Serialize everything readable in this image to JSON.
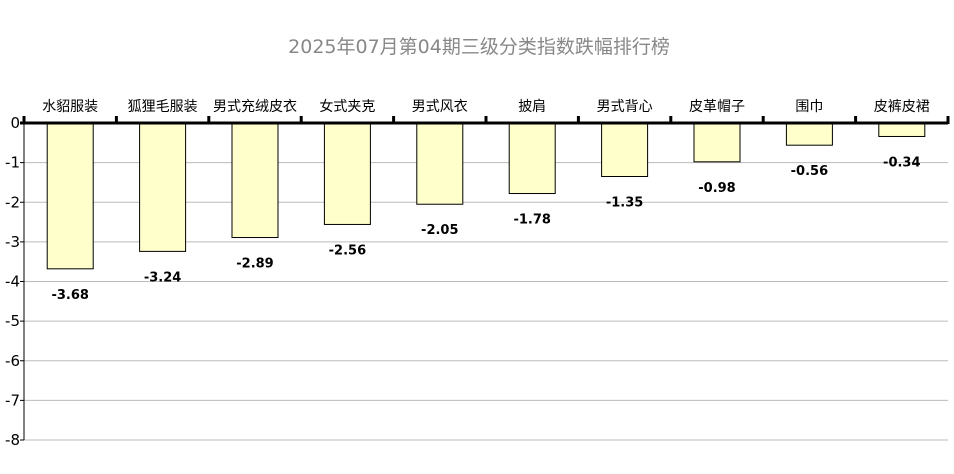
{
  "chart_data": {
    "type": "bar",
    "title": "2025年07月第04期三级分类指数跌幅排行榜",
    "categories": [
      "水貂服装",
      "狐狸毛服装",
      "男式充绒皮衣",
      "女式夹克",
      "男式风衣",
      "披肩",
      "男式背心",
      "皮革帽子",
      "围巾",
      "皮裤皮裙"
    ],
    "values": [
      -3.68,
      -3.24,
      -2.89,
      -2.56,
      -2.05,
      -1.78,
      -1.35,
      -0.98,
      -0.56,
      -0.34
    ],
    "xlabel": "",
    "ylabel": "",
    "ylim": [
      -8,
      0
    ],
    "yticks": [
      0,
      -1,
      -2,
      -3,
      -4,
      -5,
      -6,
      -7,
      -8
    ],
    "grid": true,
    "legend": "none",
    "bar_color": "#FFFFCC",
    "bar_stroke": "#000000",
    "grid_color": "#BBBBBB",
    "title_color": "#888888"
  }
}
